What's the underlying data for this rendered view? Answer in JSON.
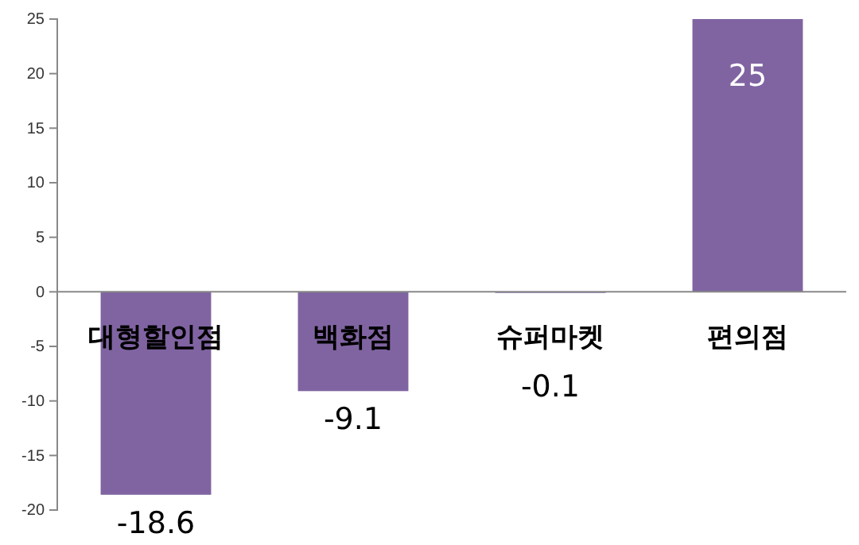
{
  "chart_data": {
    "type": "bar",
    "categories": [
      "대형할인점",
      "백화점",
      "슈퍼마켓",
      "편의점"
    ],
    "values": [
      -18.6,
      -9.1,
      -0.1,
      25
    ],
    "color": "#8064a2",
    "data_labels": true,
    "ylim": [
      -20,
      25
    ],
    "yticks": [
      -20,
      -15,
      -10,
      -5,
      0,
      5,
      10,
      15,
      20,
      25
    ],
    "grid": false
  }
}
